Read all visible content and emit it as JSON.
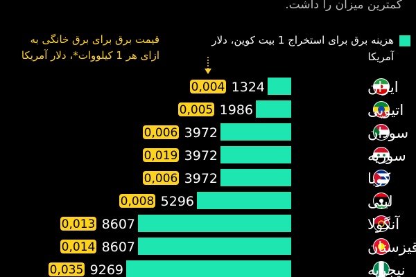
{
  "intro_text": "کمترین میزان را داشت.",
  "legend": {
    "bar": "هزینه برق برای استخراج 1 بیت کوین، دلار آمریکا",
    "price": "قیمت برق برای برق خانگی به ازای هر 1 کیلووات*، دلار آمریکا"
  },
  "colors": {
    "bar": "#1ee6b0",
    "price_badge": "#ffd21e",
    "background": "#000000"
  },
  "chart_data": {
    "type": "bar",
    "orientation": "horizontal",
    "categories": [
      "ایران",
      "اتیوپی",
      "سودان",
      "سوریه",
      "کوبا",
      "لیبی",
      "آنگولا",
      "قرقیزستان",
      "نیجریه"
    ],
    "series": [
      {
        "name": "هزینه برق برای استخراج 1 بیت کوین، دلار آمریکا",
        "values": [
          1324,
          1986,
          3972,
          3972,
          3972,
          5296,
          8607,
          8607,
          9269
        ]
      },
      {
        "name": "قیمت برق برای برق خانگی به ازای هر 1 کیلووات*، دلار آمریکا",
        "values": [
          "0,004",
          "0,005",
          "0,006",
          "0,019",
          "0,006",
          "0,008",
          "0,013",
          "0,014",
          "0,035"
        ]
      }
    ],
    "flags": [
      "iran-flag-icon",
      "ethiopia-flag-icon",
      "sudan-flag-icon",
      "syria-flag-icon",
      "cuba-flag-icon",
      "libya-flag-icon",
      "angola-flag-icon",
      "kyrgyzstan-flag-icon",
      "nigeria-flag-icon"
    ]
  }
}
